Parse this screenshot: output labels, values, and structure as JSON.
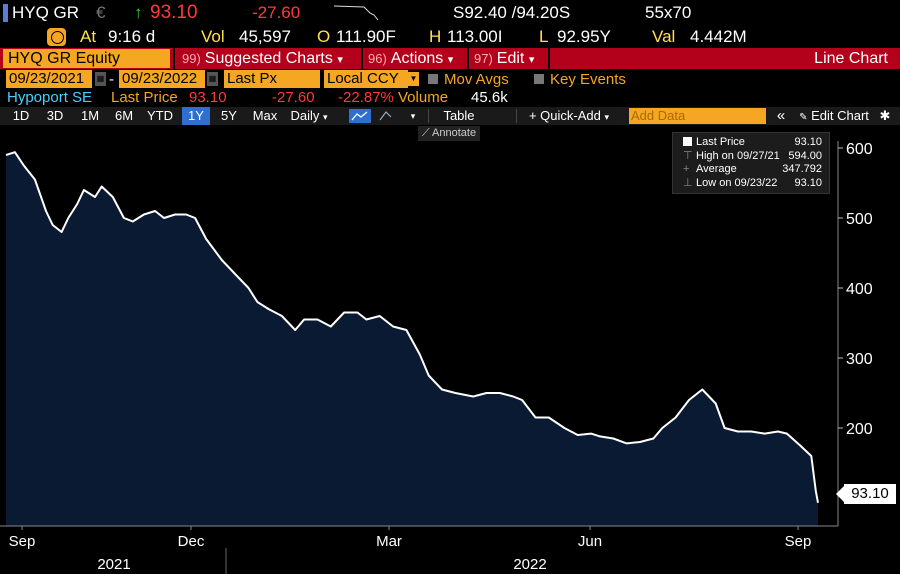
{
  "header": {
    "ticker": "HYQ GR",
    "currency": "€",
    "arrow": "↑",
    "last": "93.10",
    "change": "-27.60",
    "bid_ask": "S92.40 /94.20S",
    "size": "55x70",
    "at_label": "At",
    "time": "9:16 d",
    "vol_label": "Vol",
    "vol": "45,597",
    "open_label": "O",
    "open": "111.90F",
    "high_label": "H",
    "high": "113.00I",
    "low_label": "L",
    "low": "92.95Y",
    "val_label": "Val",
    "val": "4.442M"
  },
  "function_bar": {
    "security": "HYQ GR Equity",
    "menus": [
      {
        "num": "99)",
        "label": "Suggested Charts",
        "arrow": "▾"
      },
      {
        "num": "96)",
        "label": "Actions",
        "arrow": "▾"
      },
      {
        "num": "97)",
        "label": "Edit",
        "arrow": "▾"
      }
    ],
    "chart_type": "Line Chart"
  },
  "controls": {
    "start_date": "09/23/2021",
    "dash": "-",
    "end_date": "09/23/2022",
    "field": "Last Px",
    "currency": "Local CCY",
    "mov_avgs": "Mov Avgs",
    "key_events": "Key Events"
  },
  "security_line": {
    "name": "Hypoport SE",
    "last_label": "Last Price",
    "last": "93.10",
    "change": "-27.60",
    "pct": "-22.87%",
    "vol_label": "Volume",
    "vol": "45.6k"
  },
  "toolbar": {
    "periods": [
      "1D",
      "3D",
      "1M",
      "6M",
      "YTD",
      "1Y",
      "5Y",
      "Max"
    ],
    "active_period": "1Y",
    "frequency": "Daily",
    "table": "Table",
    "quick_add": "+ Quick-Add",
    "add_data_placeholder": "Add Data",
    "collapse": "«",
    "edit_chart": "Edit Chart",
    "gear": "✱"
  },
  "annotate": "Annotate",
  "legend": {
    "last_label": "Last Price",
    "last_value": "93.10",
    "high_label": "High on 09/27/21",
    "high_value": "594.00",
    "avg_label": "Average",
    "avg_value": "347.792",
    "low_label": "Low on 09/23/22",
    "low_value": "93.10"
  },
  "price_tag": "93.10",
  "colors": {
    "accent": "#f5a623",
    "bar_red": "#b3001b",
    "down": "#ff3a3a",
    "up": "#3ad13a",
    "fill": "#0b1a33"
  },
  "chart_data": {
    "type": "area",
    "ylim": [
      60,
      610
    ],
    "yticks": [
      200,
      300,
      400,
      500,
      600
    ],
    "xtick_labels": [
      "Sep",
      "Dec",
      "Mar",
      "Jun",
      "Sep"
    ],
    "year_labels": [
      "2021",
      "2022"
    ],
    "x": [
      "2021-09-23",
      "2021-09-27",
      "2021-10-01",
      "2021-10-06",
      "2021-10-11",
      "2021-10-14",
      "2021-10-18",
      "2021-10-21",
      "2021-10-25",
      "2021-10-28",
      "2021-11-02",
      "2021-11-05",
      "2021-11-10",
      "2021-11-15",
      "2021-11-19",
      "2021-11-24",
      "2021-11-29",
      "2021-12-03",
      "2021-12-08",
      "2021-12-13",
      "2021-12-17",
      "2021-12-22",
      "2021-12-29",
      "2022-01-04",
      "2022-01-10",
      "2022-01-14",
      "2022-01-19",
      "2022-01-25",
      "2022-01-31",
      "2022-02-04",
      "2022-02-10",
      "2022-02-16",
      "2022-02-22",
      "2022-02-28",
      "2022-03-04",
      "2022-03-10",
      "2022-03-16",
      "2022-03-22",
      "2022-03-28",
      "2022-04-01",
      "2022-04-07",
      "2022-04-13",
      "2022-04-21",
      "2022-04-27",
      "2022-05-03",
      "2022-05-09",
      "2022-05-13",
      "2022-05-19",
      "2022-05-25",
      "2022-06-01",
      "2022-06-07",
      "2022-06-13",
      "2022-06-17",
      "2022-06-23",
      "2022-06-29",
      "2022-07-05",
      "2022-07-11",
      "2022-07-15",
      "2022-07-21",
      "2022-07-27",
      "2022-08-02",
      "2022-08-08",
      "2022-08-12",
      "2022-08-18",
      "2022-08-24",
      "2022-08-30",
      "2022-09-05",
      "2022-09-09",
      "2022-09-15",
      "2022-09-20",
      "2022-09-22",
      "2022-09-23"
    ],
    "values": [
      590,
      594,
      575,
      555,
      510,
      490,
      480,
      500,
      520,
      540,
      530,
      545,
      530,
      500,
      495,
      505,
      510,
      500,
      505,
      505,
      500,
      470,
      440,
      420,
      400,
      380,
      370,
      360,
      340,
      355,
      355,
      345,
      365,
      365,
      355,
      360,
      345,
      340,
      305,
      275,
      255,
      250,
      245,
      250,
      250,
      245,
      240,
      215,
      215,
      200,
      190,
      192,
      188,
      185,
      178,
      180,
      185,
      200,
      215,
      240,
      255,
      235,
      200,
      195,
      195,
      192,
      195,
      192,
      175,
      160,
      110,
      93.1
    ]
  }
}
